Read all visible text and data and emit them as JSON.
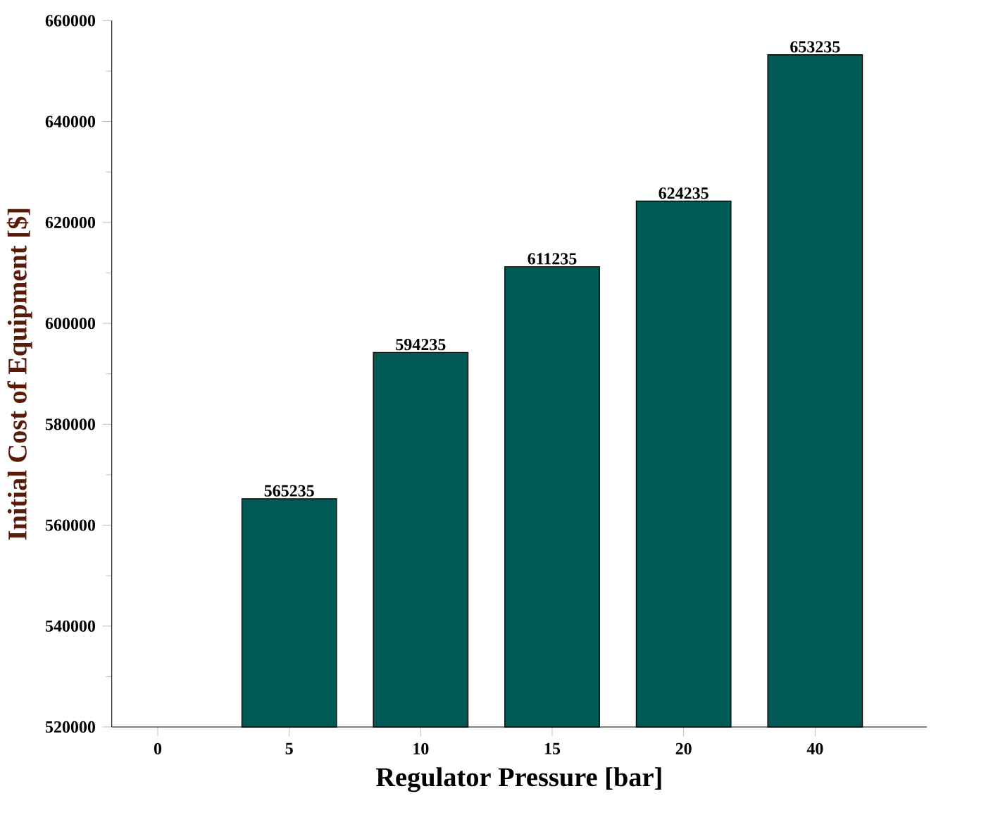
{
  "chart_data": {
    "type": "bar",
    "xlabel": "Regulator Pressure [bar]",
    "ylabel": "Initial Cost of Equipment [$]",
    "categories": [
      "0",
      "5",
      "10",
      "15",
      "20",
      "40"
    ],
    "values": [
      null,
      565235,
      594235,
      611235,
      624235,
      653235
    ],
    "color": "#025a57",
    "ylim": [
      520000,
      660000
    ],
    "yticks": [
      520000,
      540000,
      560000,
      580000,
      600000,
      620000,
      640000,
      660000
    ],
    "data_labels": true
  }
}
